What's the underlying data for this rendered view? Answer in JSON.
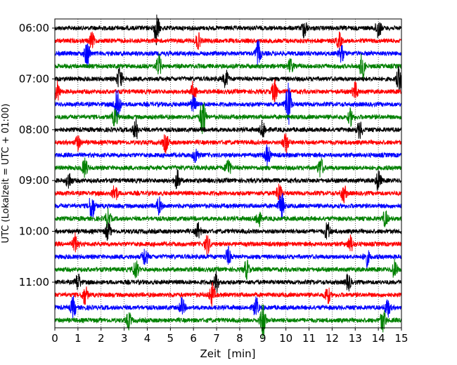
{
  "chart_data": {
    "type": "line",
    "xlabel": "Zeit  [min]",
    "ylabel": "UTC (Lokalzeit = UTC + 01:00)",
    "xlim": [
      0,
      15
    ],
    "x_ticks": [
      0,
      1,
      2,
      3,
      4,
      5,
      6,
      7,
      8,
      9,
      10,
      11,
      12,
      13,
      14,
      15
    ],
    "x_tick_labels": [
      "0",
      "1",
      "2",
      "3",
      "4",
      "5",
      "6",
      "7",
      "8",
      "9",
      "10",
      "11",
      "12",
      "13",
      "14",
      "15"
    ],
    "y_tick_labels": [
      "06:00",
      "07:00",
      "08:00",
      "09:00",
      "10:00",
      "11:00"
    ],
    "trace_interval_minutes": 15,
    "color_cycle": [
      "#000000",
      "#ff0000",
      "#0000ff",
      "#008000"
    ],
    "traces": [
      {
        "start": "06:00",
        "color": "#000000",
        "bursts": [
          [
            4.4,
            2.2
          ],
          [
            10.8,
            1.3
          ],
          [
            14.0,
            1.5
          ]
        ]
      },
      {
        "start": "06:15",
        "color": "#ff0000",
        "bursts": [
          [
            1.6,
            1.0
          ],
          [
            6.2,
            1.0
          ],
          [
            12.3,
            1.0
          ]
        ]
      },
      {
        "start": "06:30",
        "color": "#0000ff",
        "bursts": [
          [
            1.4,
            1.8
          ],
          [
            8.8,
            1.7
          ],
          [
            12.4,
            1.1
          ]
        ]
      },
      {
        "start": "06:45",
        "color": "#008000",
        "bursts": [
          [
            4.5,
            1.5
          ],
          [
            13.3,
            1.8
          ],
          [
            10.2,
            1.0
          ]
        ]
      },
      {
        "start": "07:00",
        "color": "#000000",
        "bursts": [
          [
            2.8,
            1.6
          ],
          [
            7.4,
            1.2
          ],
          [
            14.9,
            1.7
          ]
        ]
      },
      {
        "start": "07:15",
        "color": "#ff0000",
        "bursts": [
          [
            0.1,
            1.4
          ],
          [
            6.0,
            1.4
          ],
          [
            9.5,
            1.6
          ],
          [
            13.0,
            1.2
          ]
        ]
      },
      {
        "start": "07:30",
        "color": "#0000ff",
        "bursts": [
          [
            2.7,
            3.0
          ],
          [
            10.1,
            3.5
          ],
          [
            6.0,
            1.1
          ]
        ]
      },
      {
        "start": "07:45",
        "color": "#008000",
        "bursts": [
          [
            6.4,
            2.8
          ],
          [
            2.6,
            1.3
          ],
          [
            12.8,
            1.1
          ]
        ]
      },
      {
        "start": "08:00",
        "color": "#000000",
        "bursts": [
          [
            3.5,
            1.4
          ],
          [
            9.0,
            1.2
          ],
          [
            13.2,
            1.2
          ]
        ]
      },
      {
        "start": "08:15",
        "color": "#ff0000",
        "bursts": [
          [
            4.8,
            1.3
          ],
          [
            10.0,
            1.4
          ],
          [
            1.0,
            1.0
          ]
        ]
      },
      {
        "start": "08:30",
        "color": "#0000ff",
        "bursts": [
          [
            9.2,
            1.4
          ],
          [
            6.1,
            1.1
          ]
        ]
      },
      {
        "start": "08:45",
        "color": "#008000",
        "bursts": [
          [
            1.3,
            1.3
          ],
          [
            7.5,
            1.3
          ],
          [
            11.5,
            1.4
          ]
        ]
      },
      {
        "start": "09:00",
        "color": "#000000",
        "bursts": [
          [
            0.6,
            1.2
          ],
          [
            5.3,
            1.3
          ],
          [
            14.0,
            1.4
          ]
        ]
      },
      {
        "start": "09:15",
        "color": "#ff0000",
        "bursts": [
          [
            2.6,
            1.2
          ],
          [
            9.7,
            1.4
          ],
          [
            12.5,
            1.2
          ]
        ]
      },
      {
        "start": "09:30",
        "color": "#0000ff",
        "bursts": [
          [
            1.6,
            2.0
          ],
          [
            9.8,
            2.0
          ],
          [
            4.5,
            1.1
          ]
        ]
      },
      {
        "start": "09:45",
        "color": "#008000",
        "bursts": [
          [
            2.3,
            1.2
          ],
          [
            8.8,
            1.2
          ],
          [
            14.3,
            1.1
          ]
        ]
      },
      {
        "start": "10:00",
        "color": "#000000",
        "bursts": [
          [
            2.3,
            1.2
          ],
          [
            6.2,
            1.1
          ],
          [
            11.8,
            1.3
          ]
        ]
      },
      {
        "start": "10:15",
        "color": "#ff0000",
        "bursts": [
          [
            0.9,
            1.4
          ],
          [
            6.6,
            1.3
          ],
          [
            12.8,
            1.1
          ]
        ]
      },
      {
        "start": "10:30",
        "color": "#0000ff",
        "bursts": [
          [
            3.9,
            1.3
          ],
          [
            7.5,
            1.2
          ],
          [
            13.5,
            1.2
          ]
        ]
      },
      {
        "start": "10:45",
        "color": "#008000",
        "bursts": [
          [
            3.5,
            1.3
          ],
          [
            8.3,
            1.3
          ],
          [
            14.7,
            1.2
          ]
        ]
      },
      {
        "start": "11:00",
        "color": "#000000",
        "bursts": [
          [
            1.0,
            1.2
          ],
          [
            7.0,
            1.3
          ],
          [
            12.7,
            1.1
          ]
        ]
      },
      {
        "start": "11:15",
        "color": "#ff0000",
        "bursts": [
          [
            1.3,
            1.3
          ],
          [
            6.8,
            1.6
          ],
          [
            11.8,
            1.2
          ]
        ]
      },
      {
        "start": "11:30",
        "color": "#0000ff",
        "bursts": [
          [
            0.8,
            1.4
          ],
          [
            5.5,
            1.2
          ],
          [
            8.7,
            1.3
          ],
          [
            14.4,
            1.2
          ]
        ]
      },
      {
        "start": "11:45",
        "color": "#008000",
        "bursts": [
          [
            9.0,
            2.5
          ],
          [
            14.2,
            1.6
          ],
          [
            3.2,
            1.1
          ]
        ]
      }
    ]
  }
}
